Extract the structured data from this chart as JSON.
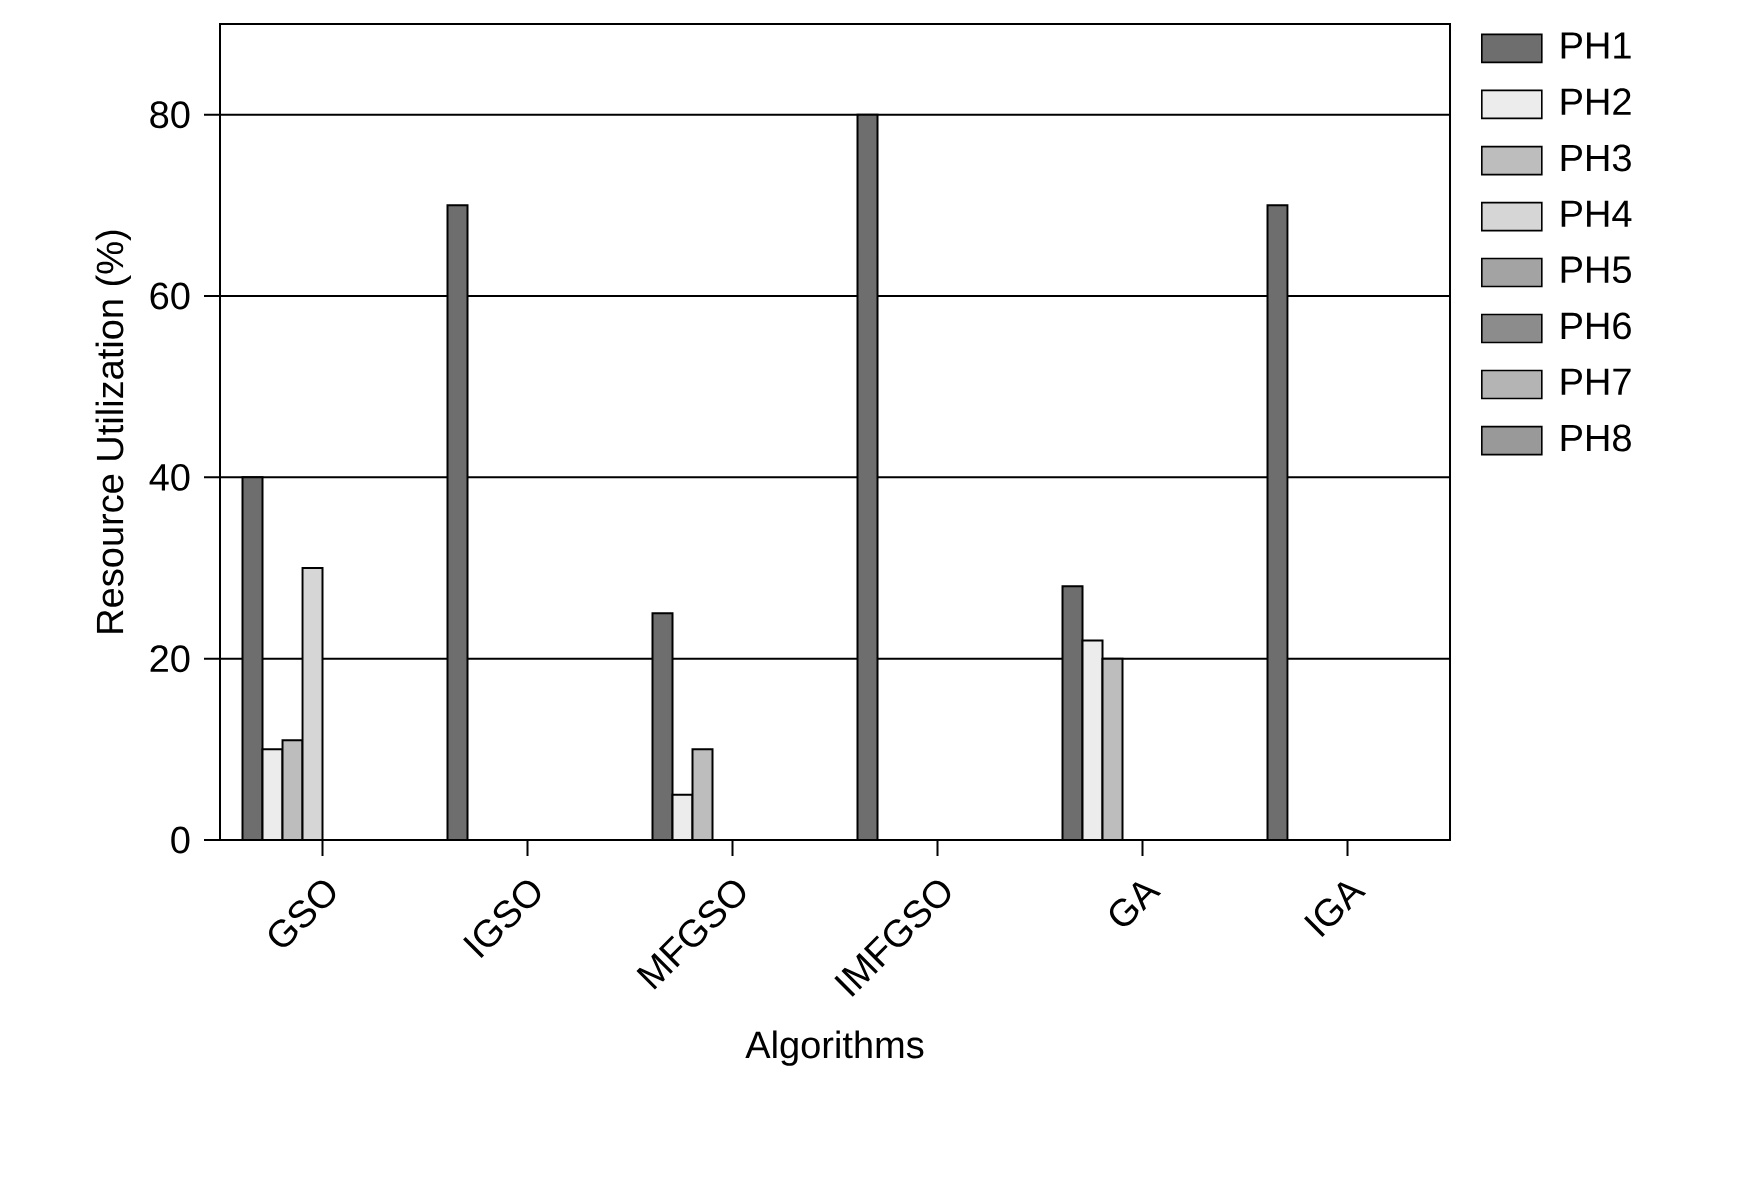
{
  "chart_data": {
    "type": "bar",
    "xlabel": "Algorithms",
    "ylabel": "Resource Utilization (%)",
    "categories": [
      "GSO",
      "IGSO",
      "MFGSO",
      "IMFGSO",
      "GA",
      "IGA"
    ],
    "ylim": [
      0,
      90
    ],
    "yticks": [
      0,
      20,
      40,
      60,
      80
    ],
    "grid": "y",
    "legend": "right",
    "series": [
      {
        "name": "PH1",
        "color": "#6e6e6e",
        "values": [
          40,
          70,
          25,
          80,
          28,
          70
        ]
      },
      {
        "name": "PH2",
        "color": "#ececec",
        "values": [
          10,
          null,
          5,
          null,
          22,
          null
        ]
      },
      {
        "name": "PH3",
        "color": "#bdbdbd",
        "values": [
          11,
          null,
          10,
          null,
          20,
          null
        ]
      },
      {
        "name": "PH4",
        "color": "#d6d6d6",
        "values": [
          30,
          null,
          null,
          null,
          null,
          null
        ]
      },
      {
        "name": "PH5",
        "color": "#a3a3a3",
        "values": [
          null,
          null,
          null,
          null,
          null,
          null
        ]
      },
      {
        "name": "PH6",
        "color": "#8c8c8c",
        "values": [
          null,
          null,
          null,
          null,
          null,
          null
        ]
      },
      {
        "name": "PH7",
        "color": "#b4b4b4",
        "values": [
          null,
          null,
          null,
          null,
          null,
          null
        ]
      },
      {
        "name": "PH8",
        "color": "#999999",
        "values": [
          null,
          null,
          null,
          null,
          null,
          null
        ]
      }
    ]
  }
}
